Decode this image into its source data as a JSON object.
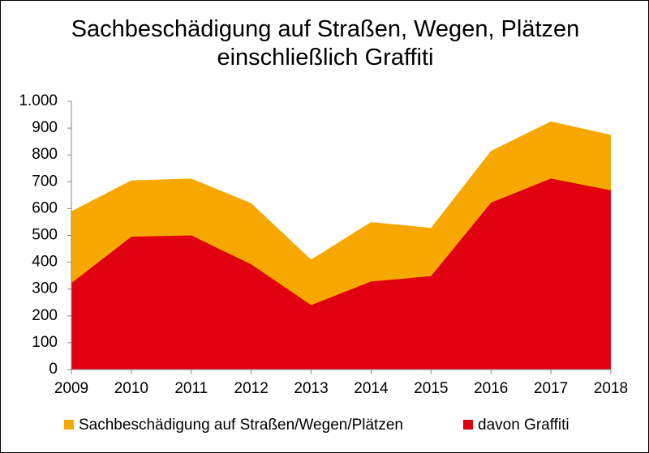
{
  "chart_data": {
    "type": "area",
    "title": "Sachbeschädigung auf Straßen, Wegen, Plätzen einschließlich Graffiti",
    "x": [
      2009,
      2010,
      2011,
      2012,
      2013,
      2014,
      2015,
      2016,
      2017,
      2018
    ],
    "series": [
      {
        "name": "Sachbeschädigung auf Straßen/Wegen/Plätzen",
        "color": "#f6a800",
        "values": [
          590,
          705,
          712,
          620,
          410,
          550,
          528,
          815,
          925,
          875
        ]
      },
      {
        "name": "davon Graffiti",
        "color": "#e1000f",
        "values": [
          322,
          495,
          500,
          392,
          240,
          328,
          348,
          622,
          712,
          668
        ]
      }
    ],
    "xlim": [
      2009,
      2018
    ],
    "xticks": [
      2009,
      2010,
      2011,
      2012,
      2013,
      2014,
      2015,
      2016,
      2017,
      2018
    ],
    "ylim": [
      0,
      1000
    ],
    "yticks": [
      0,
      100,
      200,
      300,
      400,
      500,
      600,
      700,
      800,
      900,
      {
        "value": 1000,
        "label": "1.000"
      }
    ],
    "grid": false,
    "legend": "bottom"
  }
}
